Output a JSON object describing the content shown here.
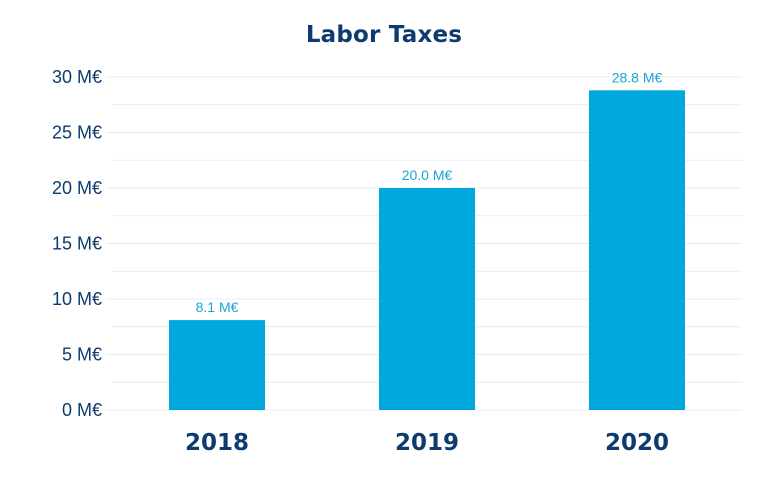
{
  "chart_data": {
    "type": "bar",
    "title": "Labor Taxes",
    "xlabel": "",
    "ylabel": "",
    "categories": [
      "2018",
      "2019",
      "2020"
    ],
    "values": [
      8.1,
      20.0,
      28.8
    ],
    "data_labels": [
      "8.1 M€",
      "20.0 M€",
      "28.8 M€"
    ],
    "ylim": [
      0,
      30
    ],
    "yticks": [
      0,
      5,
      10,
      15,
      20,
      25,
      30
    ],
    "ytick_labels": [
      "0 M€",
      "5 M€",
      "10 M€",
      "15 M€",
      "20 M€",
      "25 M€",
      "30 M€"
    ],
    "grid": true,
    "legend": "none",
    "colors": {
      "bar": "#00a8de",
      "title": "#0d3b6e",
      "axis_text": "#0d3b6e",
      "data_label": "#1aa6d6",
      "grid": "#e3eef3"
    }
  }
}
